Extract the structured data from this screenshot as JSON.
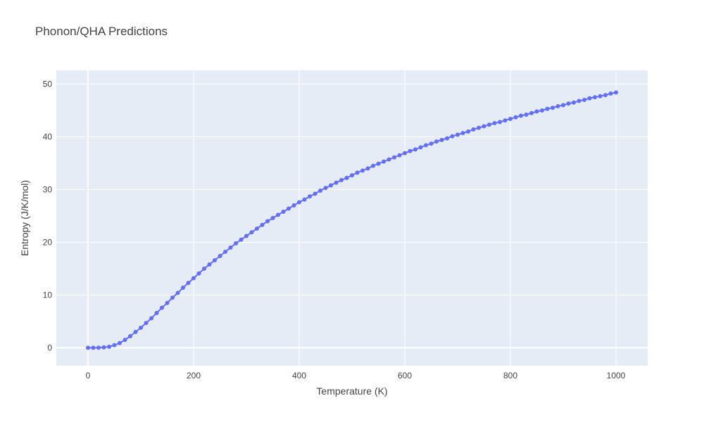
{
  "chart_data": {
    "type": "line",
    "mode": "lines+markers",
    "title": "Phonon/QHA Predictions",
    "xlabel": "Temperature (K)",
    "ylabel": "Entropy (J/K/mol)",
    "xlim": [
      -60,
      1060
    ],
    "ylim": [
      -3.4,
      52.6
    ],
    "x_ticks": [
      0,
      200,
      400,
      600,
      800,
      1000
    ],
    "y_ticks": [
      0,
      10,
      20,
      30,
      40,
      50
    ],
    "grid": true,
    "legend": "none",
    "colors": {
      "plot_bg": "#e5ecf6",
      "grid": "#ffffff",
      "series": "#636efa",
      "text": "#444444"
    },
    "series": [
      {
        "x": [
          0,
          10,
          20,
          30,
          40,
          50,
          60,
          70,
          80,
          90,
          100,
          110,
          120,
          130,
          140,
          150,
          160,
          170,
          180,
          190,
          200,
          210,
          220,
          230,
          240,
          250,
          260,
          270,
          280,
          290,
          300,
          310,
          320,
          330,
          340,
          350,
          360,
          370,
          380,
          390,
          400,
          410,
          420,
          430,
          440,
          450,
          460,
          470,
          480,
          490,
          500,
          510,
          520,
          530,
          540,
          550,
          560,
          570,
          580,
          590,
          600,
          610,
          620,
          630,
          640,
          650,
          660,
          670,
          680,
          690,
          700,
          710,
          720,
          730,
          740,
          750,
          760,
          770,
          780,
          790,
          800,
          810,
          820,
          830,
          840,
          850,
          860,
          870,
          880,
          890,
          900,
          910,
          920,
          930,
          940,
          950,
          960,
          970,
          980,
          990,
          1000
        ],
        "y": [
          0,
          0,
          0.02,
          0.08,
          0.2,
          0.5,
          0.9,
          1.5,
          2.2,
          3.0,
          3.8,
          4.7,
          5.6,
          6.6,
          7.6,
          8.5,
          9.5,
          10.4,
          11.4,
          12.3,
          13.2,
          14.1,
          15.0,
          15.8,
          16.6,
          17.4,
          18.2,
          19.0,
          19.8,
          20.5,
          21.2,
          21.9,
          22.6,
          23.3,
          24.0,
          24.6,
          25.2,
          25.8,
          26.4,
          27.0,
          27.6,
          28.1,
          28.7,
          29.2,
          29.8,
          30.3,
          30.8,
          31.3,
          31.8,
          32.2,
          32.7,
          33.2,
          33.6,
          34.0,
          34.5,
          34.9,
          35.3,
          35.7,
          36.1,
          36.5,
          36.9,
          37.3,
          37.6,
          38.0,
          38.4,
          38.7,
          39.1,
          39.4,
          39.7,
          40.1,
          40.4,
          40.7,
          41.0,
          41.4,
          41.7,
          42.0,
          42.3,
          42.6,
          42.8,
          43.1,
          43.4,
          43.7,
          44.0,
          44.2,
          44.5,
          44.8,
          45.0,
          45.3,
          45.5,
          45.8,
          46.0,
          46.3,
          46.5,
          46.8,
          47.0,
          47.3,
          47.5,
          47.7,
          47.9,
          48.2,
          48.4
        ]
      }
    ]
  }
}
